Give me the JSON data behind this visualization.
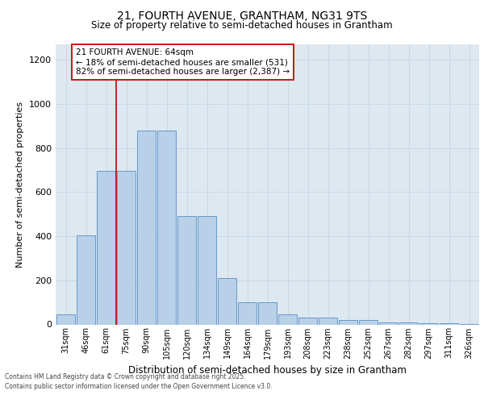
{
  "title1": "21, FOURTH AVENUE, GRANTHAM, NG31 9TS",
  "title2": "Size of property relative to semi-detached houses in Grantham",
  "xlabel": "Distribution of semi-detached houses by size in Grantham",
  "ylabel": "Number of semi-detached properties",
  "categories": [
    "31sqm",
    "46sqm",
    "61sqm",
    "75sqm",
    "90sqm",
    "105sqm",
    "120sqm",
    "134sqm",
    "149sqm",
    "164sqm",
    "179sqm",
    "193sqm",
    "208sqm",
    "223sqm",
    "238sqm",
    "252sqm",
    "267sqm",
    "282sqm",
    "297sqm",
    "311sqm",
    "326sqm"
  ],
  "bar_heights": [
    45,
    405,
    695,
    695,
    880,
    880,
    490,
    490,
    210,
    100,
    100,
    45,
    30,
    30,
    20,
    20,
    10,
    10,
    5,
    5,
    2
  ],
  "bar_color": "#b8d0e8",
  "bar_edge_color": "#6699cc",
  "red_line_x": 2.5,
  "annotation_title": "21 FOURTH AVENUE: 64sqm",
  "annotation_line1": "← 18% of semi-detached houses are smaller (531)",
  "annotation_line2": "82% of semi-detached houses are larger (2,387) →",
  "red_line_color": "#cc0000",
  "annotation_box_color": "#ffffff",
  "annotation_box_edge": "#cc0000",
  "grid_color": "#c8d8e8",
  "background_color": "#dde8f0",
  "footer1": "Contains HM Land Registry data © Crown copyright and database right 2025.",
  "footer2": "Contains public sector information licensed under the Open Government Licence v3.0.",
  "ylim": [
    0,
    1270
  ],
  "yticks": [
    0,
    200,
    400,
    600,
    800,
    1000,
    1200
  ]
}
